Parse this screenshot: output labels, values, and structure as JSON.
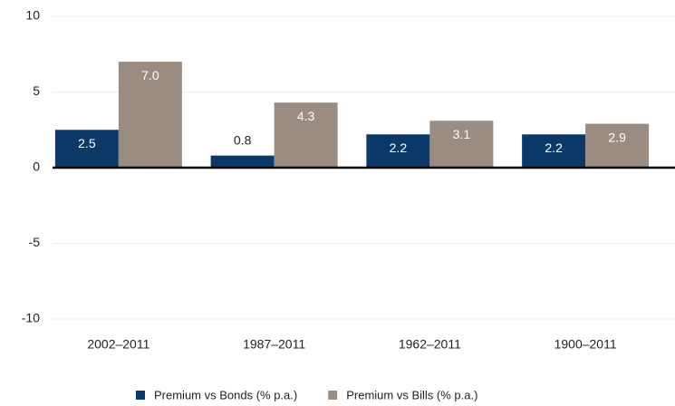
{
  "chart_data": {
    "type": "bar",
    "categories": [
      "2002–2011",
      "1987–2011",
      "1962–2011",
      "1900–2011"
    ],
    "series": [
      {
        "name": "Premium vs Bonds (% p.a.)",
        "color": "#0b3a6a",
        "values": [
          2.5,
          0.8,
          2.2,
          2.2
        ],
        "value_labels": [
          "2.5",
          "0.8",
          "2.2",
          "2.2"
        ]
      },
      {
        "name": "Premium vs Bills (% p.a.)",
        "color": "#9b8c81",
        "values": [
          7.0,
          4.3,
          3.1,
          2.9
        ],
        "value_labels": [
          "7.0",
          "4.3",
          "3.1",
          "2.9"
        ]
      }
    ],
    "ylim": [
      -10,
      10
    ],
    "yticks": [
      -10,
      -5,
      0,
      5,
      10
    ],
    "grid": true,
    "legend": "bottom"
  }
}
